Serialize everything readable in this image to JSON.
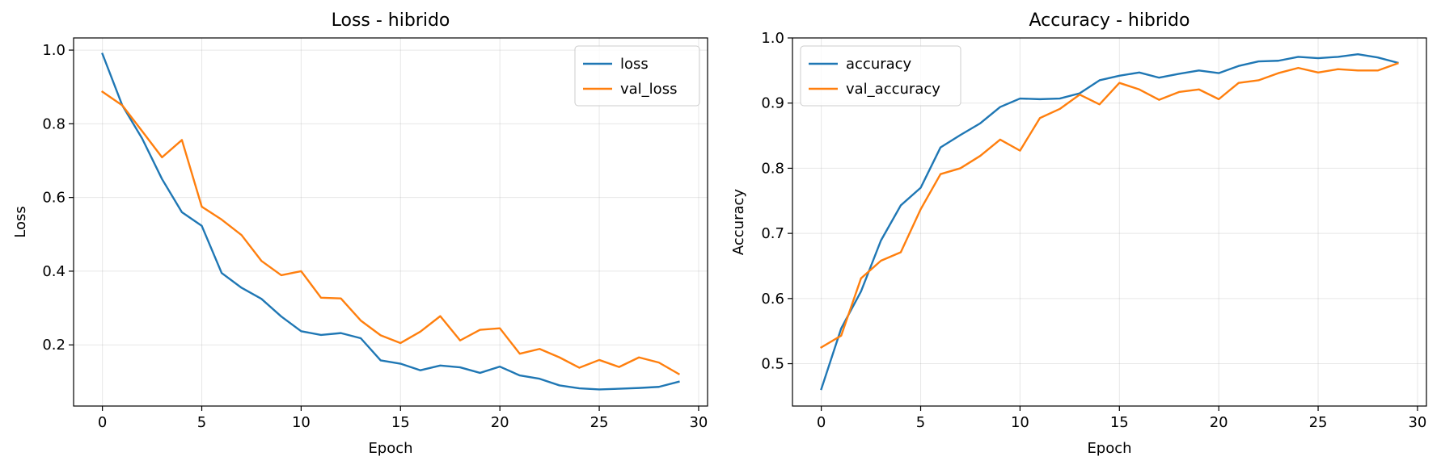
{
  "colors": {
    "series1": "#1f77b4",
    "series2": "#ff7f0e"
  },
  "chart_data": [
    {
      "type": "line",
      "title": "Loss - hibrido",
      "xlabel": "Epoch",
      "ylabel": "Loss",
      "xlim": [
        -1.45,
        30.45
      ],
      "ylim": [
        0.034,
        1.033
      ],
      "xticks": [
        0,
        5,
        10,
        15,
        20,
        25,
        30
      ],
      "yticks": [
        0.2,
        0.4,
        0.6,
        0.8,
        1.0
      ],
      "ytick_labels": [
        "0.2",
        "0.4",
        "0.6",
        "0.8",
        "1.0"
      ],
      "grid": true,
      "legend_position": "top-right",
      "x": [
        0,
        1,
        2,
        3,
        4,
        5,
        6,
        7,
        8,
        9,
        10,
        11,
        12,
        13,
        14,
        15,
        16,
        17,
        18,
        19,
        20,
        21,
        22,
        23,
        24,
        25,
        26,
        27,
        28,
        29
      ],
      "series": [
        {
          "name": "loss",
          "values": [
            0.99,
            0.85,
            0.76,
            0.65,
            0.56,
            0.523,
            0.395,
            0.355,
            0.325,
            0.277,
            0.237,
            0.227,
            0.232,
            0.218,
            0.158,
            0.149,
            0.131,
            0.144,
            0.139,
            0.124,
            0.141,
            0.117,
            0.108,
            0.09,
            0.082,
            0.079,
            0.081,
            0.083,
            0.086,
            0.1
          ]
        },
        {
          "name": "val_loss",
          "values": [
            0.887,
            0.85,
            0.78,
            0.709,
            0.756,
            0.575,
            0.54,
            0.498,
            0.428,
            0.389,
            0.4,
            0.328,
            0.326,
            0.266,
            0.226,
            0.205,
            0.236,
            0.278,
            0.212,
            0.241,
            0.245,
            0.176,
            0.189,
            0.166,
            0.138,
            0.159,
            0.14,
            0.166,
            0.152,
            0.121
          ]
        }
      ]
    },
    {
      "type": "line",
      "title": "Accuracy - hibrido",
      "xlabel": "Epoch",
      "ylabel": "Accuracy",
      "xlim": [
        -1.45,
        30.45
      ],
      "ylim": [
        0.435,
        1.0
      ],
      "xticks": [
        0,
        5,
        10,
        15,
        20,
        25,
        30
      ],
      "yticks": [
        0.5,
        0.6,
        0.7,
        0.8,
        0.9,
        1.0
      ],
      "ytick_labels": [
        "0.5",
        "0.6",
        "0.7",
        "0.8",
        "0.9",
        "1.0"
      ],
      "grid": true,
      "legend_position": "top-left",
      "x": [
        0,
        1,
        2,
        3,
        4,
        5,
        6,
        7,
        8,
        9,
        10,
        11,
        12,
        13,
        14,
        15,
        16,
        17,
        18,
        19,
        20,
        21,
        22,
        23,
        24,
        25,
        26,
        27,
        28,
        29
      ],
      "series": [
        {
          "name": "accuracy",
          "values": [
            0.461,
            0.554,
            0.611,
            0.689,
            0.743,
            0.77,
            0.832,
            0.851,
            0.869,
            0.894,
            0.907,
            0.906,
            0.907,
            0.915,
            0.935,
            0.942,
            0.947,
            0.939,
            0.945,
            0.95,
            0.946,
            0.957,
            0.964,
            0.965,
            0.971,
            0.969,
            0.971,
            0.975,
            0.97,
            0.962
          ]
        },
        {
          "name": "val_accuracy",
          "values": [
            0.525,
            0.543,
            0.631,
            0.658,
            0.671,
            0.737,
            0.791,
            0.8,
            0.819,
            0.844,
            0.827,
            0.877,
            0.891,
            0.913,
            0.898,
            0.931,
            0.921,
            0.905,
            0.917,
            0.921,
            0.906,
            0.931,
            0.935,
            0.946,
            0.954,
            0.947,
            0.952,
            0.95,
            0.95,
            0.961
          ]
        }
      ]
    }
  ]
}
